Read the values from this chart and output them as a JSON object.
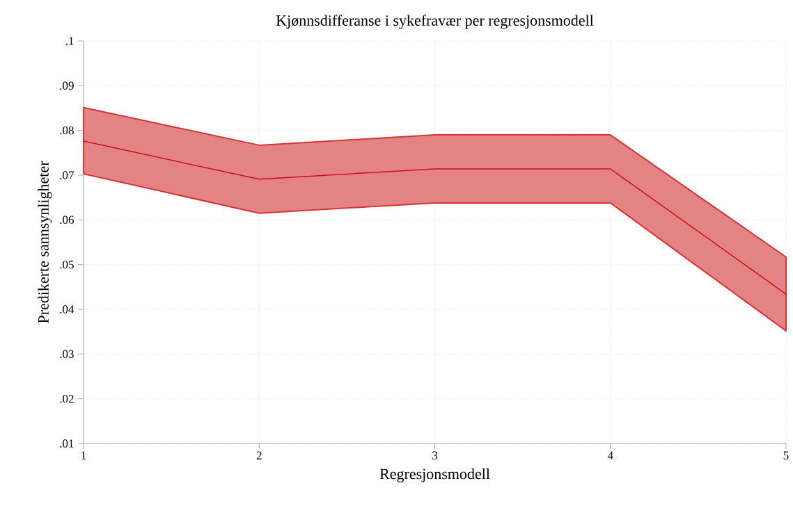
{
  "chart_data": {
    "type": "line",
    "title": "Kjønnsdifferanse i sykefravær per regresjonsmodell",
    "xlabel": "Regresjonsmodell",
    "ylabel": "Predikerte sannsynligheter",
    "x": [
      1,
      2,
      3,
      4,
      5
    ],
    "series": [
      {
        "color": "#cc1010",
        "values": [
          0.0776,
          0.0691,
          0.0714,
          0.0714,
          0.0434
        ],
        "lower": [
          0.0703,
          0.0615,
          0.0638,
          0.0638,
          0.0352
        ],
        "upper": [
          0.0851,
          0.0767,
          0.079,
          0.079,
          0.0517
        ]
      }
    ],
    "xlim": [
      1,
      5
    ],
    "xticks": [
      1,
      2,
      3,
      4,
      5
    ],
    "ylim": [
      0.01,
      0.1
    ],
    "yticks": [
      {
        "value": 0.01,
        "label": ".01"
      },
      {
        "value": 0.02,
        "label": ".02"
      },
      {
        "value": 0.03,
        "label": ".03"
      },
      {
        "value": 0.04,
        "label": ".04"
      },
      {
        "value": 0.05,
        "label": ".05"
      },
      {
        "value": 0.06,
        "label": ".06"
      },
      {
        "value": 0.07,
        "label": ".07"
      },
      {
        "value": 0.08,
        "label": ".08"
      },
      {
        "value": 0.09,
        "label": ".09"
      },
      {
        "value": 0.1,
        "label": ".1"
      }
    ],
    "grid": true,
    "line_style": "solid",
    "marker": "none"
  }
}
